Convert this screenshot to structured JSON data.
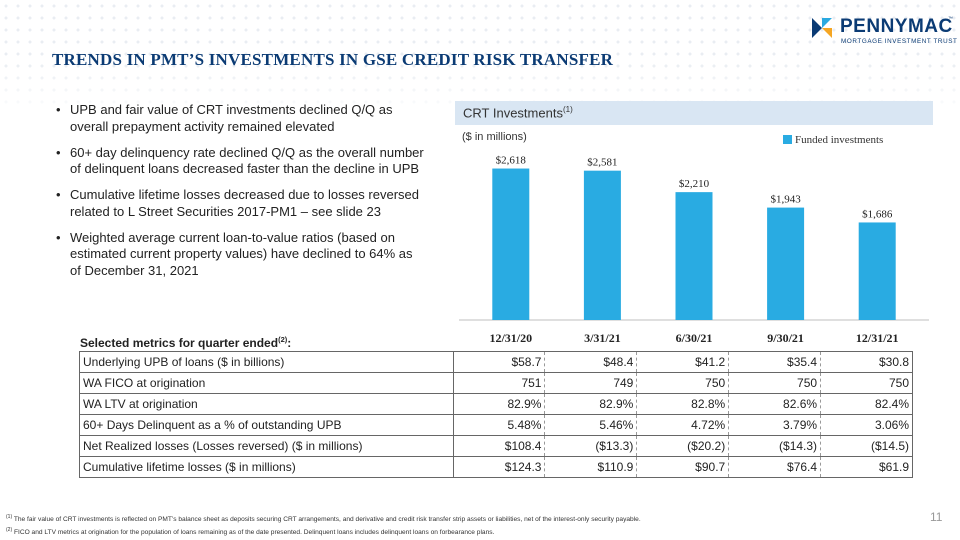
{
  "title": "TRENDS IN PMT’S INVESTMENTS IN GSE CREDIT RISK TRANSFER",
  "logo": {
    "name": "PENNYMAC",
    "tm": "™",
    "subtitle": "MORTGAGE INVESTMENT TRUST"
  },
  "bullets": [
    "UPB and fair value of CRT investments declined Q/Q as overall prepayment activity remained elevated",
    "60+ day delinquency rate declined Q/Q as the overall number of delinquent loans decreased faster than the decline in UPB",
    "Cumulative lifetime losses decreased due to losses reversed related to L Street Securities 2017-PM1 – see slide 23",
    "Weighted average current loan-to-value ratios (based on estimated current property values) have declined to 64% as of December 31, 2021"
  ],
  "panel": {
    "title": "CRT Investments",
    "title_sup": "(1)",
    "units": "($ in millions)"
  },
  "colors": {
    "bar": "#29abe2",
    "title": "#0b3b74",
    "panel_header": "#d9e6f3"
  },
  "chart_data": {
    "type": "bar",
    "title": "CRT Investments",
    "categories": [
      "12/31/20",
      "3/31/21",
      "6/30/21",
      "9/30/21",
      "12/31/21"
    ],
    "series": [
      {
        "name": "Funded investments",
        "values": [
          2618,
          2581,
          2210,
          1943,
          1686
        ]
      }
    ],
    "data_labels": [
      "$2,618",
      "$2,581",
      "$2,210",
      "$1,943",
      "$1,686"
    ],
    "ylim": [
      0,
      2800
    ],
    "ylabel": "",
    "xlabel": "",
    "legend_position": "top-right",
    "grid": false
  },
  "metrics": {
    "label": "Selected metrics for quarter ended",
    "label_sup": "(2)",
    "label_colon": ":",
    "rows": [
      {
        "label": "Underlying UPB of loans ($ in billions)",
        "values": [
          "$58.7",
          "$48.4",
          "$41.2",
          "$35.4",
          "$30.8"
        ]
      },
      {
        "label": "WA FICO at origination",
        "values": [
          "751",
          "749",
          "750",
          "750",
          "750"
        ]
      },
      {
        "label": "WA LTV at origination",
        "values": [
          "82.9%",
          "82.9%",
          "82.8%",
          "82.6%",
          "82.4%"
        ]
      },
      {
        "label": "60+ Days Delinquent as a % of outstanding UPB",
        "values": [
          "5.48%",
          "5.46%",
          "4.72%",
          "3.79%",
          "3.06%"
        ]
      },
      {
        "label": "Net Realized losses (Losses reversed) ($ in millions)",
        "values": [
          "$108.4",
          "($13.3)",
          "($20.2)",
          "($14.3)",
          "($14.5)"
        ]
      },
      {
        "label": "Cumulative lifetime losses ($ in millions)",
        "values": [
          "$124.3",
          "$110.9",
          "$90.7",
          "$76.4",
          "$61.9"
        ]
      }
    ]
  },
  "footnotes": [
    {
      "mark": "(1)",
      "text": "The fair value of CRT investments is reflected on PMT’s balance sheet as deposits securing CRT arrangements, and derivative and credit risk transfer strip assets or liabilities, net of the interest-only security payable."
    },
    {
      "mark": "(2)",
      "text": "FICO and LTV metrics at origination for the population of loans remaining as of the date presented. Delinquent loans includes delinquent loans on forbearance plans."
    }
  ],
  "page_number": "11"
}
